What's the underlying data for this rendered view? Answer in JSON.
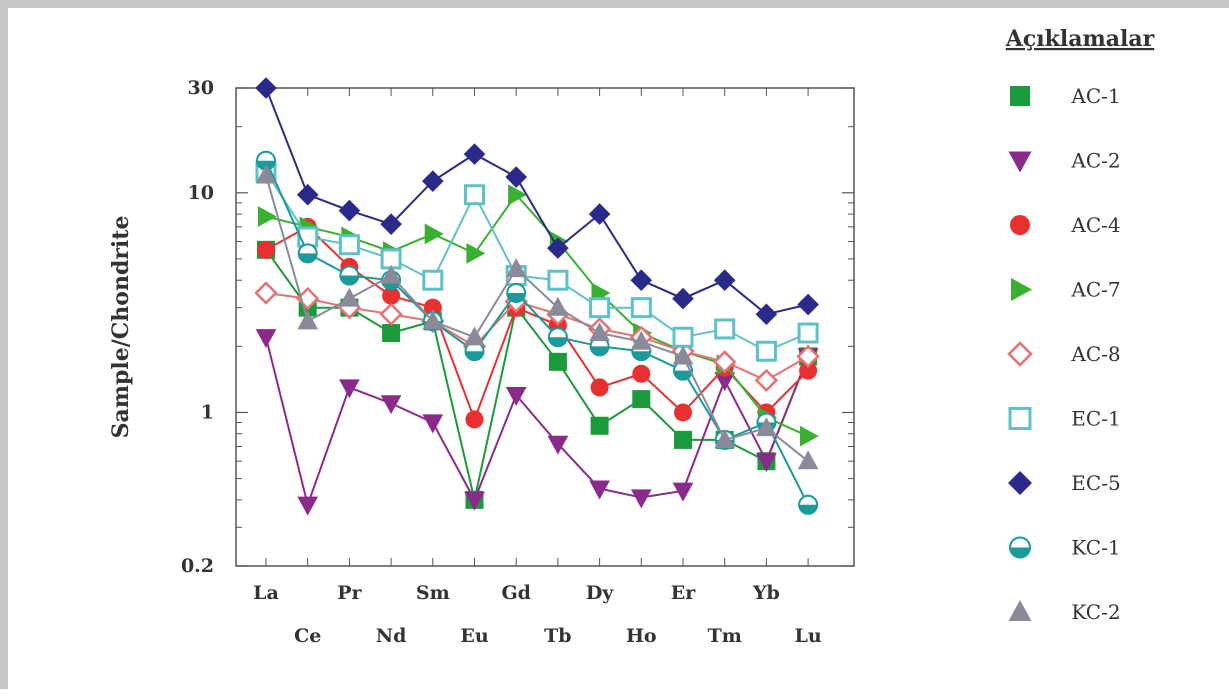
{
  "chart_data": {
    "type": "line",
    "y_scale": "log",
    "ylim": [
      0.2,
      30
    ],
    "y_ticks": [
      "30",
      "10",
      "1",
      "0.2"
    ],
    "y_tick_values": [
      30,
      10,
      1,
      0.2
    ],
    "ylabel": "Sample/Chondrite",
    "xlabel": "",
    "grid": false,
    "legend_title": "Açıklamalar",
    "legend_position": "right",
    "categories": [
      "La",
      "Ce",
      "Pr",
      "Nd",
      "Sm",
      "Eu",
      "Gd",
      "Tb",
      "Dy",
      "Ho",
      "Er",
      "Tm",
      "Yb",
      "Lu"
    ],
    "series": [
      {
        "name": "AC-1",
        "color": "#1a9a3a",
        "marker": "square",
        "values": [
          5.5,
          3.0,
          3.0,
          2.3,
          2.6,
          0.4,
          3.0,
          1.7,
          0.87,
          1.15,
          0.75,
          0.75,
          0.6,
          1.8
        ]
      },
      {
        "name": "AC-2",
        "color": "#8a2a8a",
        "marker": "triangle-down",
        "values": [
          2.2,
          0.38,
          1.3,
          1.1,
          0.9,
          0.4,
          1.2,
          0.72,
          0.45,
          0.41,
          0.44,
          1.4,
          0.6,
          1.8
        ]
      },
      {
        "name": "AC-4",
        "color": "#e83030",
        "marker": "circle",
        "values": [
          5.5,
          7.0,
          4.6,
          3.4,
          3.0,
          0.93,
          3.0,
          2.5,
          1.3,
          1.5,
          1.0,
          1.6,
          1.0,
          1.55
        ]
      },
      {
        "name": "AC-7",
        "color": "#3ab030",
        "marker": "triangle-right",
        "values": [
          7.8,
          7.0,
          6.3,
          5.4,
          6.5,
          5.3,
          9.8,
          6.0,
          3.5,
          2.3,
          1.9,
          1.65,
          0.95,
          0.78
        ]
      },
      {
        "name": "AC-8",
        "color": "#e87070",
        "marker": "diamond-open",
        "values": [
          3.5,
          3.3,
          3.0,
          2.8,
          2.6,
          2.0,
          3.2,
          2.8,
          2.4,
          2.2,
          1.9,
          1.7,
          1.4,
          1.8
        ]
      },
      {
        "name": "EC-1",
        "color": "#60c0c8",
        "marker": "square-open",
        "values": [
          12.5,
          6.3,
          5.8,
          5.0,
          4.0,
          9.8,
          4.2,
          4.0,
          3.0,
          3.0,
          2.2,
          2.4,
          1.9,
          2.3
        ]
      },
      {
        "name": "EC-5",
        "color": "#2a2a8a",
        "marker": "diamond",
        "values": [
          30,
          9.8,
          8.3,
          7.2,
          11.3,
          15.0,
          11.8,
          5.6,
          8.0,
          4.0,
          3.3,
          4.0,
          2.8,
          3.1
        ]
      },
      {
        "name": "KC-1",
        "color": "#1a9a9a",
        "marker": "half-circle",
        "values": [
          14.0,
          5.3,
          4.2,
          4.0,
          2.6,
          1.9,
          3.5,
          2.2,
          2.0,
          1.9,
          1.55,
          0.75,
          0.9,
          0.38
        ]
      },
      {
        "name": "KC-2",
        "color": "#8a8a9a",
        "marker": "triangle",
        "values": [
          12.0,
          2.6,
          3.3,
          4.2,
          2.6,
          2.2,
          4.5,
          3.0,
          2.3,
          2.1,
          1.8,
          0.75,
          0.85,
          0.6
        ]
      }
    ]
  }
}
